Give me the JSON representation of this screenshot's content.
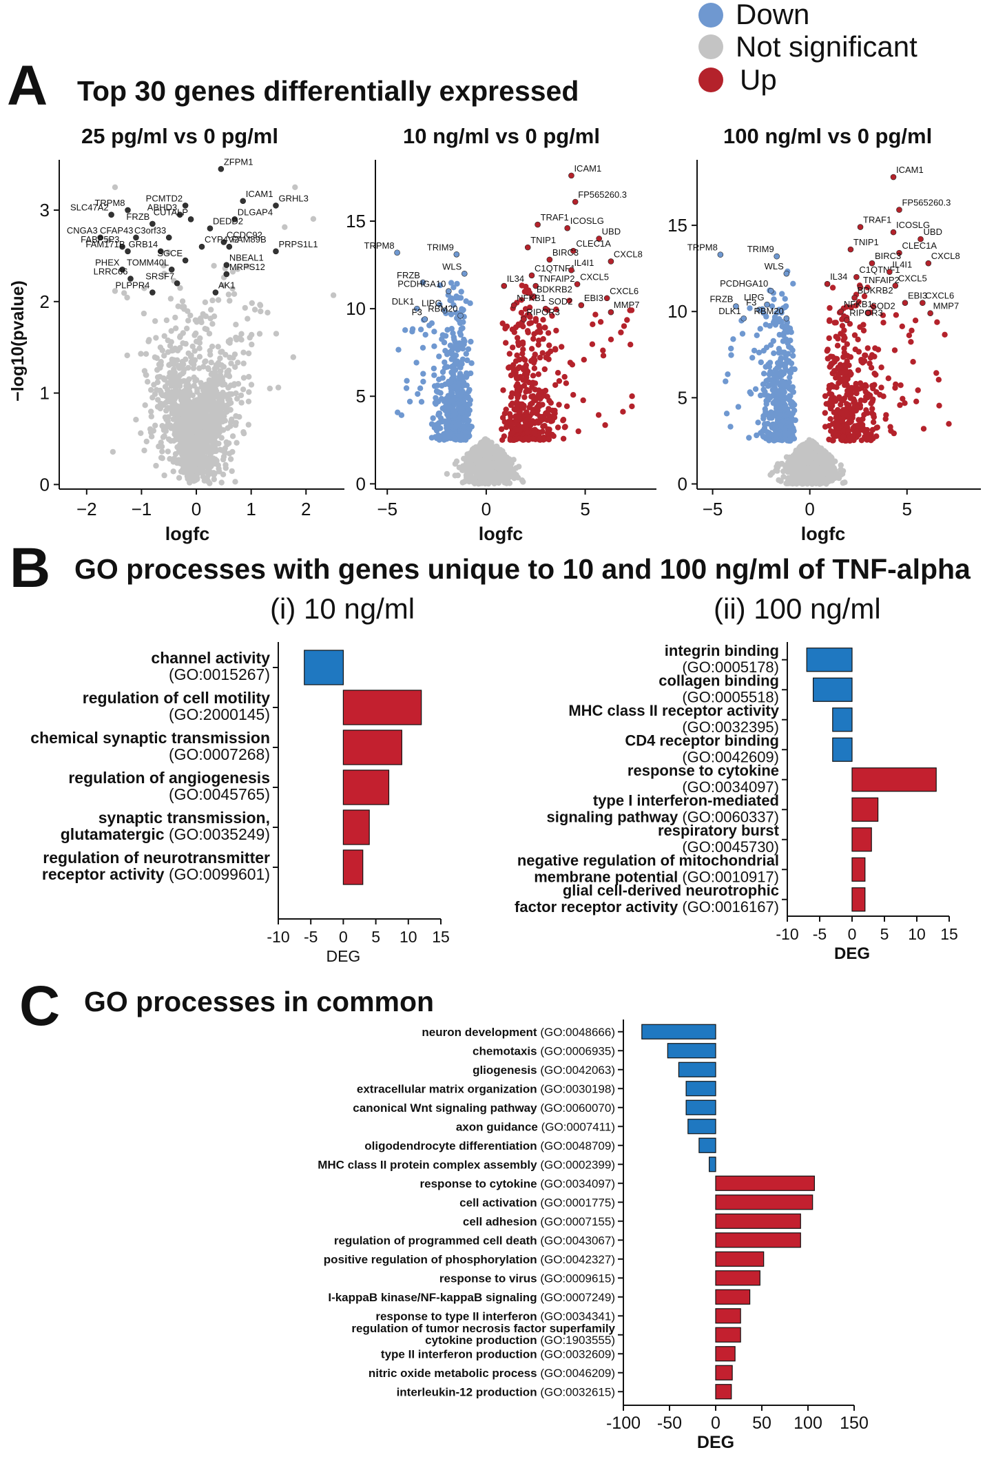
{
  "legend": {
    "items": [
      {
        "label": "Down",
        "color": "#6f98d0"
      },
      {
        "label": "Not significant",
        "color": "#c4c4c4"
      },
      {
        "label": "Up",
        "color": "#b4222b"
      }
    ]
  },
  "panel_a": {
    "letter": "A",
    "title": "Top 30 genes differentially expressed",
    "ylabel": "−log10(pvalue)",
    "xlabel": "logfc"
  },
  "panel_b": {
    "letter": "B",
    "title": "GO processes with genes unique to 10 and 100 ng/ml of TNF-alpha",
    "sub_i": "(i) 10 ng/ml",
    "sub_ii": "(ii) 100 ng/ml",
    "xlabel": "DEG"
  },
  "panel_c": {
    "letter": "C",
    "title": "GO processes in common",
    "xlabel": "DEG"
  },
  "chart_data": [
    {
      "type": "scatter",
      "title": "25 pg/ml   vs 0 pg/ml",
      "xlabel": "logfc",
      "ylabel": "−log10(pvalue)",
      "xlim": [
        -2.5,
        2.7
      ],
      "ylim": [
        -0.05,
        3.55
      ],
      "xticks": [
        "−2",
        "−1",
        "0",
        "1",
        "2"
      ],
      "yticks": [
        "0",
        "1",
        "2",
        "3"
      ],
      "significant": false,
      "labeled_genes": [
        {
          "gene": "ZFPM1",
          "x": 0.45,
          "y": 3.45
        },
        {
          "gene": "PCMTD2",
          "x": -0.2,
          "y": 3.05
        },
        {
          "gene": "TRPM8",
          "x": -1.25,
          "y": 3.0
        },
        {
          "gene": "ABHD3",
          "x": -0.3,
          "y": 2.95
        },
        {
          "gene": "ICAM1",
          "x": 0.85,
          "y": 3.1
        },
        {
          "gene": "GRHL3",
          "x": 1.45,
          "y": 3.05
        },
        {
          "gene": "SLC47A2",
          "x": -1.55,
          "y": 2.95
        },
        {
          "gene": "CUTALP",
          "x": -0.1,
          "y": 2.9
        },
        {
          "gene": "DLGAP4",
          "x": 0.7,
          "y": 2.9
        },
        {
          "gene": "FRZB",
          "x": -0.8,
          "y": 2.85
        },
        {
          "gene": "DEDD2",
          "x": 0.25,
          "y": 2.8
        },
        {
          "gene": "CNGA3",
          "x": -1.75,
          "y": 2.7
        },
        {
          "gene": "CFAP43",
          "x": -1.1,
          "y": 2.7
        },
        {
          "gene": "C3orf33",
          "x": -0.5,
          "y": 2.7
        },
        {
          "gene": "CCDC92",
          "x": 0.5,
          "y": 2.65
        },
        {
          "gene": "PRPS1L1",
          "x": 1.45,
          "y": 2.55
        },
        {
          "gene": "FABP5P3",
          "x": -1.35,
          "y": 2.6
        },
        {
          "gene": "CYP4V2",
          "x": 0.1,
          "y": 2.6
        },
        {
          "gene": "FAM89B",
          "x": 0.6,
          "y": 2.6
        },
        {
          "gene": "FAM171B",
          "x": -1.25,
          "y": 2.55
        },
        {
          "gene": "GRB14",
          "x": -0.65,
          "y": 2.55
        },
        {
          "gene": "SGCE",
          "x": -0.2,
          "y": 2.45
        },
        {
          "gene": "NBEAL1",
          "x": 0.55,
          "y": 2.4
        },
        {
          "gene": "PHEX",
          "x": -1.35,
          "y": 2.35
        },
        {
          "gene": "TOMM40L",
          "x": -0.45,
          "y": 2.35
        },
        {
          "gene": "MRPS12",
          "x": 0.55,
          "y": 2.3
        },
        {
          "gene": "LRRC66",
          "x": -1.2,
          "y": 2.25
        },
        {
          "gene": "SRSF7",
          "x": -0.35,
          "y": 2.2
        },
        {
          "gene": "PLPPR4",
          "x": -0.8,
          "y": 2.1
        },
        {
          "gene": "AK1",
          "x": 0.35,
          "y": 2.1
        }
      ]
    },
    {
      "type": "scatter",
      "title": "10 ng/ml   vs 0 pg/ml",
      "xlabel": "logfc",
      "ylabel": "−log10(pvalue)",
      "xlim": [
        -5.6,
        8.6
      ],
      "ylim": [
        -0.3,
        18.5
      ],
      "xticks": [
        "−5",
        "0",
        "5"
      ],
      "yticks": [
        "0",
        "5",
        "10",
        "15"
      ],
      "significant": true,
      "labeled_genes": [
        {
          "gene": "ICAM1",
          "x": 4.3,
          "y": 17.6
        },
        {
          "gene": "FP565260.3",
          "x": 4.5,
          "y": 16.1
        },
        {
          "gene": "TRAF1",
          "x": 2.6,
          "y": 14.8
        },
        {
          "gene": "ICOSLG",
          "x": 4.1,
          "y": 14.6
        },
        {
          "gene": "UBD",
          "x": 5.7,
          "y": 14.0
        },
        {
          "gene": "TNIP1",
          "x": 2.1,
          "y": 13.5
        },
        {
          "gene": "TRPM8",
          "x": -4.5,
          "y": 13.2
        },
        {
          "gene": "TRIM9",
          "x": -1.5,
          "y": 13.1
        },
        {
          "gene": "CLEC1A",
          "x": 4.4,
          "y": 13.3
        },
        {
          "gene": "CXCL8",
          "x": 6.3,
          "y": 12.7
        },
        {
          "gene": "BIRC3",
          "x": 3.2,
          "y": 12.8
        },
        {
          "gene": "WLS",
          "x": -1.1,
          "y": 12.0
        },
        {
          "gene": "C1QTNF1",
          "x": 2.3,
          "y": 11.9
        },
        {
          "gene": "IL4I1",
          "x": 4.3,
          "y": 12.2
        },
        {
          "gene": "FRZB",
          "x": -3.2,
          "y": 11.5
        },
        {
          "gene": "IL34",
          "x": 0.9,
          "y": 11.3
        },
        {
          "gene": "TNFAIP2",
          "x": 2.5,
          "y": 11.3
        },
        {
          "gene": "CXCL5",
          "x": 4.6,
          "y": 11.4
        },
        {
          "gene": "PCDHGA10",
          "x": -1.9,
          "y": 11.0
        },
        {
          "gene": "BDKRB2",
          "x": 2.4,
          "y": 10.7
        },
        {
          "gene": "NFKB1",
          "x": 1.4,
          "y": 10.2
        },
        {
          "gene": "CXCL6",
          "x": 6.1,
          "y": 10.6
        },
        {
          "gene": "DLK1",
          "x": -3.5,
          "y": 10.0
        },
        {
          "gene": "LIPG",
          "x": -2.1,
          "y": 9.9
        },
        {
          "gene": "EBI3",
          "x": 4.8,
          "y": 10.2
        },
        {
          "gene": "SOD2",
          "x": 3.0,
          "y": 10.0
        },
        {
          "gene": "MMP7",
          "x": 6.3,
          "y": 9.8
        },
        {
          "gene": "F3",
          "x": -3.1,
          "y": 9.4
        },
        {
          "gene": "RBM20",
          "x": -1.3,
          "y": 9.6
        },
        {
          "gene": "RIPOR3",
          "x": 1.9,
          "y": 9.4
        }
      ]
    },
    {
      "type": "scatter",
      "title": "100 ng/ml   vs 0 pg/ml",
      "xlabel": "logfc",
      "ylabel": "−log10(pvalue)",
      "xlim": [
        -5.8,
        8.8
      ],
      "ylim": [
        -0.3,
        18.8
      ],
      "xticks": [
        "−5",
        "0",
        "5"
      ],
      "yticks": [
        "0",
        "5",
        "10",
        "15"
      ],
      "significant": true,
      "labeled_genes": [
        {
          "gene": "ICAM1",
          "x": 4.3,
          "y": 17.8
        },
        {
          "gene": "FP565260.3",
          "x": 4.6,
          "y": 15.9
        },
        {
          "gene": "TRAF1",
          "x": 2.6,
          "y": 14.9
        },
        {
          "gene": "ICOSLG",
          "x": 4.3,
          "y": 14.6
        },
        {
          "gene": "UBD",
          "x": 5.7,
          "y": 14.2
        },
        {
          "gene": "TNIP1",
          "x": 2.1,
          "y": 13.6
        },
        {
          "gene": "TRPM8",
          "x": -4.6,
          "y": 13.3
        },
        {
          "gene": "CLEC1A",
          "x": 4.6,
          "y": 13.4
        },
        {
          "gene": "TRIM9",
          "x": -1.7,
          "y": 13.2
        },
        {
          "gene": "BIRC3",
          "x": 3.2,
          "y": 12.8
        },
        {
          "gene": "CXCL8",
          "x": 6.1,
          "y": 12.8
        },
        {
          "gene": "C1QTNF1",
          "x": 2.4,
          "y": 12.0
        },
        {
          "gene": "IL4I1",
          "x": 4.1,
          "y": 12.3
        },
        {
          "gene": "WLS",
          "x": -1.2,
          "y": 12.2
        },
        {
          "gene": "IL34",
          "x": 0.9,
          "y": 11.6
        },
        {
          "gene": "TNFAIP2",
          "x": 2.6,
          "y": 11.4
        },
        {
          "gene": "CXCL5",
          "x": 4.4,
          "y": 11.5
        },
        {
          "gene": "PCDHGA10",
          "x": -2.0,
          "y": 11.2
        },
        {
          "gene": "BDKRB2",
          "x": 2.3,
          "y": 10.8
        },
        {
          "gene": "EBI3",
          "x": 4.9,
          "y": 10.5
        },
        {
          "gene": "CXCL6",
          "x": 5.8,
          "y": 10.5
        },
        {
          "gene": "LIPG",
          "x": -2.2,
          "y": 10.4
        },
        {
          "gene": "FRZB",
          "x": -3.8,
          "y": 10.3
        },
        {
          "gene": "F3",
          "x": -2.6,
          "y": 10.1
        },
        {
          "gene": "NFKB1",
          "x": 1.6,
          "y": 10.0
        },
        {
          "gene": "SOD2",
          "x": 3.0,
          "y": 9.9
        },
        {
          "gene": "MMP7",
          "x": 6.2,
          "y": 9.9
        },
        {
          "gene": "DLK1",
          "x": -3.4,
          "y": 9.6
        },
        {
          "gene": "RBM20",
          "x": -1.2,
          "y": 9.6
        },
        {
          "gene": "RIPOR3",
          "x": 1.9,
          "y": 9.5
        }
      ]
    },
    {
      "type": "bar",
      "title": "(i) 10 ng/ml",
      "orientation": "horizontal",
      "xlabel": "DEG",
      "xlim": [
        -10,
        15
      ],
      "xticks": [
        "-10",
        "-5",
        "0",
        "5",
        "10",
        "15"
      ],
      "categories": [
        {
          "name": "channel activity",
          "go": "(GO:0015267)",
          "value": -6
        },
        {
          "name": "regulation of cell motility",
          "go": "(GO:2000145)",
          "value": 12
        },
        {
          "name": "chemical synaptic transmission",
          "go": "(GO:0007268)",
          "value": 9
        },
        {
          "name": "regulation of angiogenesis",
          "go": "(GO:0045765)",
          "value": 7
        },
        {
          "name": "synaptic transmission,",
          "name2": "glutamatergic",
          "go": "(GO:0035249)",
          "value": 4
        },
        {
          "name": "regulation of neurotransmitter",
          "name2": "receptor activity",
          "go": "(GO:0099601)",
          "value": 3
        }
      ]
    },
    {
      "type": "bar",
      "title": "(ii) 100 ng/ml",
      "orientation": "horizontal",
      "xlabel": "DEG",
      "xlim": [
        -10,
        15
      ],
      "xticks": [
        "-10",
        "-5",
        "0",
        "5",
        "10",
        "15"
      ],
      "categories": [
        {
          "name": "integrin binding",
          "go": "(GO:0005178)",
          "value": -7
        },
        {
          "name": "collagen binding",
          "go": "(GO:0005518)",
          "value": -6
        },
        {
          "name": "MHC class II receptor activity",
          "go": "(GO:0032395)",
          "value": -3
        },
        {
          "name": "CD4 receptor binding",
          "go": "(GO:0042609)",
          "value": -3
        },
        {
          "name": "response to cytokine",
          "go": "(GO:0034097)",
          "value": 13
        },
        {
          "name": "type I interferon-mediated",
          "name2": "signaling pathway",
          "go": "(GO:0060337)",
          "value": 4
        },
        {
          "name": "respiratory burst",
          "go": "(GO:0045730)",
          "value": 3
        },
        {
          "name": "negative regulation of mitochondrial",
          "name2": "membrane potential",
          "go": "(GO:0010917)",
          "value": 2
        },
        {
          "name": "glial cell-derived neurotrophic",
          "name2": "factor receptor activity",
          "go": "(GO:0016167)",
          "value": 2
        }
      ]
    },
    {
      "type": "bar",
      "title": "GO processes in common",
      "orientation": "horizontal",
      "xlabel": "DEG",
      "xlim": [
        -100,
        150
      ],
      "xticks": [
        "-100",
        "-50",
        "0",
        "50",
        "100",
        "150"
      ],
      "categories": [
        {
          "name": "neuron development",
          "go": "(GO:0048666)",
          "value": -80
        },
        {
          "name": "chemotaxis",
          "go": "(GO:0006935)",
          "value": -52
        },
        {
          "name": "gliogenesis",
          "go": "(GO:0042063)",
          "value": -40
        },
        {
          "name": "extracellular matrix organization",
          "go": "(GO:0030198)",
          "value": -32
        },
        {
          "name": "canonical Wnt signaling pathway",
          "go": "(GO:0060070)",
          "value": -32
        },
        {
          "name": "axon guidance",
          "go": "(GO:0007411)",
          "value": -30
        },
        {
          "name": "oligodendrocyte differentiation",
          "go": "(GO:0048709)",
          "value": -18
        },
        {
          "name": "MHC class II protein complex assembly",
          "go": "(GO:0002399)",
          "value": -7
        },
        {
          "name": "response to cytokine",
          "go": "(GO:0034097)",
          "value": 107
        },
        {
          "name": "cell activation",
          "go": "(GO:0001775)",
          "value": 105
        },
        {
          "name": "cell adhesion",
          "go": "(GO:0007155)",
          "value": 92
        },
        {
          "name": "regulation of programmed cell death",
          "go": "(GO:0043067)",
          "value": 92
        },
        {
          "name": "positive regulation of phosphorylation",
          "go": "(GO:0042327)",
          "value": 52
        },
        {
          "name": "response to virus",
          "go": "(GO:0009615)",
          "value": 48
        },
        {
          "name": "I-kappaB kinase/NF-kappaB signaling",
          "go": "(GO:0007249)",
          "value": 37
        },
        {
          "name": "response to type II interferon",
          "go": "(GO:0034341)",
          "value": 27
        },
        {
          "name": "regulation of tumor necrosis factor superfamily",
          "name2": "cytokine production",
          "go": "(GO:1903555)",
          "value": 27
        },
        {
          "name": "type II interferon production",
          "go": "(GO:0032609)",
          "value": 21
        },
        {
          "name": "nitric oxide metabolic process",
          "go": "(GO:0046209)",
          "value": 18
        },
        {
          "name": "interleukin-12 production",
          "go": "(GO:0032615)",
          "value": 17
        }
      ]
    }
  ]
}
